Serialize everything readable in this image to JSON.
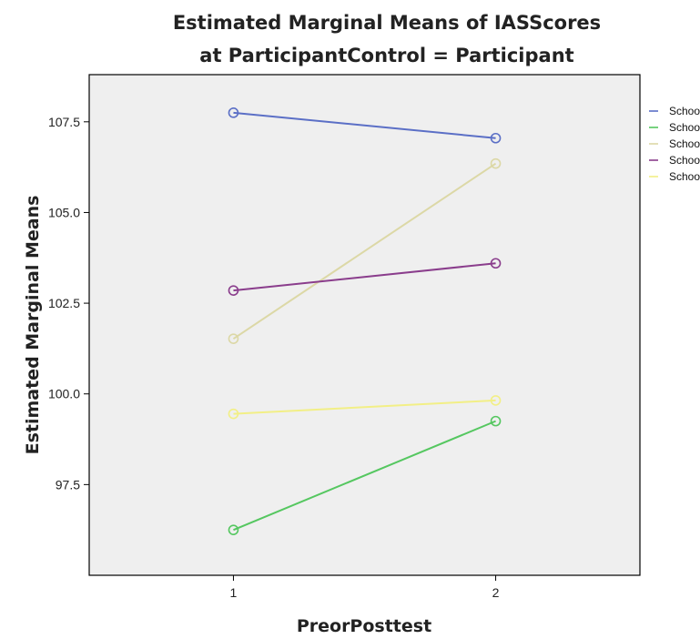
{
  "chart_data": {
    "type": "line",
    "title": "Estimated Marginal Means of IASScores",
    "subtitle": "at ParticipantControl = Participant",
    "xlabel": "PreorPosttest",
    "ylabel": "Estimated Marginal Means",
    "x": [
      1,
      2
    ],
    "x_tick_labels": [
      "1",
      "2"
    ],
    "xlim": [
      0.45,
      2.55
    ],
    "ylim": [
      95.0,
      108.8
    ],
    "y_ticks": [
      97.5,
      100.0,
      102.5,
      105.0,
      107.5
    ],
    "y_tick_labels": [
      "97.5",
      "100.0",
      "102.5",
      "105.0",
      "107.5"
    ],
    "grid": false,
    "legend_position": "right",
    "series": [
      {
        "name": "School A",
        "color": "#5b6fc6",
        "values": [
          107.75,
          107.05
        ]
      },
      {
        "name": "School B",
        "color": "#55c760",
        "values": [
          96.25,
          99.25
        ]
      },
      {
        "name": "School C",
        "color": "#dcd8a6",
        "values": [
          101.52,
          106.35
        ]
      },
      {
        "name": "School D",
        "color": "#8a3d8c",
        "values": [
          102.85,
          103.6
        ]
      },
      {
        "name": "School E",
        "color": "#f2ef86",
        "values": [
          99.45,
          99.82
        ]
      }
    ]
  }
}
